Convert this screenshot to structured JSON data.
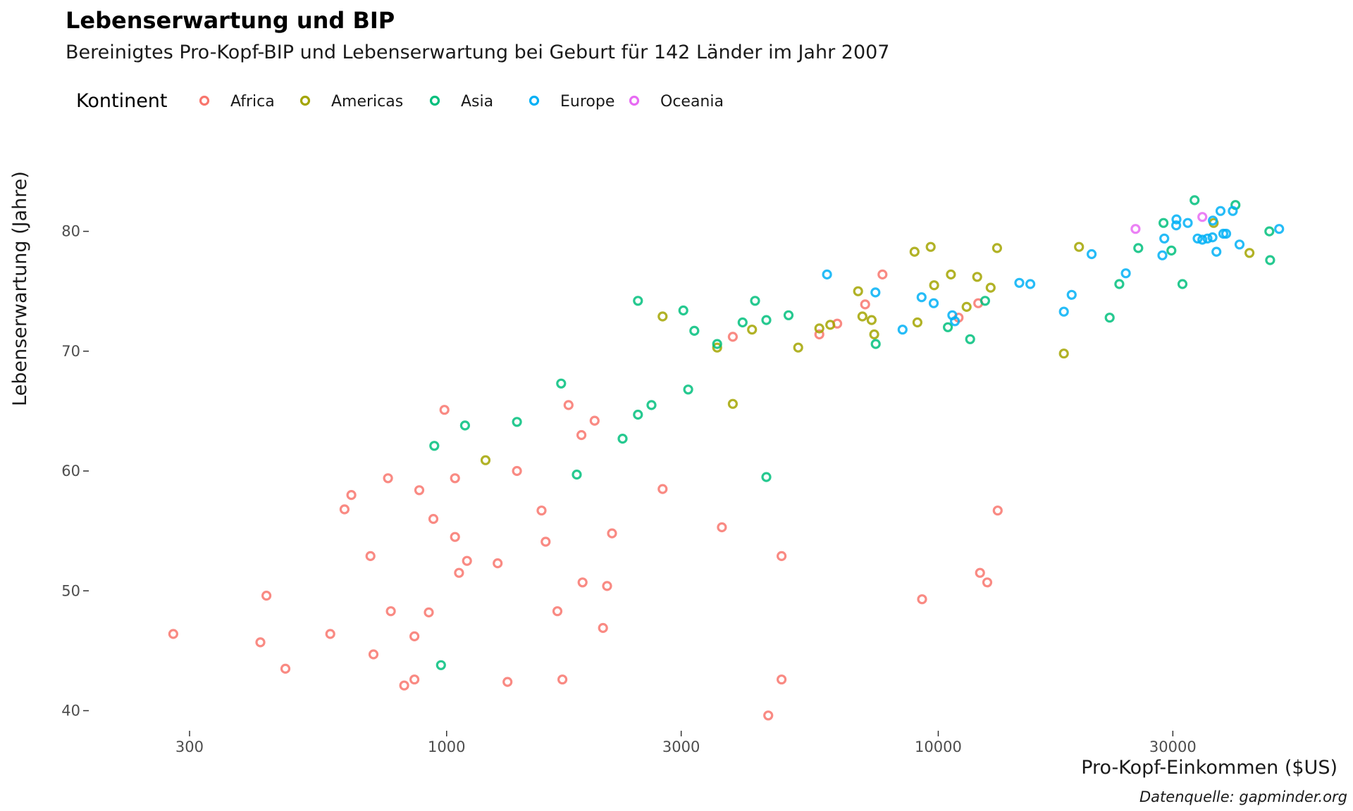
{
  "chart_data": {
    "type": "scatter",
    "title": "Lebenserwartung und BIP",
    "subtitle": "Bereinigtes Pro-Kopf-BIP und Lebenserwartung bei Geburt für 142 Länder im Jahr 2007",
    "xlabel": "Pro-Kopf-Einkommen ($US)",
    "ylabel": "Lebenserwartung (Jahre)",
    "caption": "Datenquelle: gapminder.org",
    "x_scale": "log",
    "xlim": [
      220,
      55000
    ],
    "ylim": [
      38.5,
      85.5
    ],
    "x_ticks": [
      300,
      1000,
      3000,
      10000,
      30000
    ],
    "x_tick_labels": [
      "300",
      "1000",
      "3000",
      "10000",
      "30000"
    ],
    "y_ticks": [
      40,
      50,
      60,
      70,
      80
    ],
    "y_tick_labels": [
      "40",
      "50",
      "60",
      "70",
      "80"
    ],
    "grid": false,
    "legend": {
      "title": "Kontinent",
      "position": "top-left",
      "entries": [
        {
          "name": "Africa",
          "color": "#F8766D"
        },
        {
          "name": "Americas",
          "color": "#A3A500"
        },
        {
          "name": "Asia",
          "color": "#00BF7D"
        },
        {
          "name": "Europe",
          "color": "#00B0F6"
        },
        {
          "name": "Oceania",
          "color": "#E76BF3"
        }
      ]
    },
    "series": [
      {
        "name": "Africa",
        "color": "#F8766D",
        "points": [
          [
            278,
            46.4
          ],
          [
            418,
            45.7
          ],
          [
            430,
            49.6
          ],
          [
            470,
            43.5
          ],
          [
            580,
            46.4
          ],
          [
            620,
            56.8
          ],
          [
            640,
            58.0
          ],
          [
            700,
            52.9
          ],
          [
            710,
            44.7
          ],
          [
            760,
            59.4
          ],
          [
            770,
            48.3
          ],
          [
            820,
            42.1
          ],
          [
            860,
            42.6
          ],
          [
            860,
            46.2
          ],
          [
            880,
            58.4
          ],
          [
            920,
            48.2
          ],
          [
            940,
            56.0
          ],
          [
            990,
            65.1
          ],
          [
            1040,
            54.5
          ],
          [
            1040,
            59.4
          ],
          [
            1060,
            51.5
          ],
          [
            1100,
            52.5
          ],
          [
            1270,
            52.3
          ],
          [
            1330,
            42.4
          ],
          [
            1390,
            60.0
          ],
          [
            1560,
            56.7
          ],
          [
            1590,
            54.1
          ],
          [
            1680,
            48.3
          ],
          [
            1720,
            42.6
          ],
          [
            1770,
            65.5
          ],
          [
            1880,
            63.0
          ],
          [
            1890,
            50.7
          ],
          [
            2000,
            64.2
          ],
          [
            2080,
            46.9
          ],
          [
            2120,
            50.4
          ],
          [
            2170,
            54.8
          ],
          [
            2750,
            58.5
          ],
          [
            3630,
            55.3
          ],
          [
            3820,
            71.2
          ],
          [
            4510,
            39.6
          ],
          [
            4800,
            42.6
          ],
          [
            4800,
            52.9
          ],
          [
            5730,
            71.4
          ],
          [
            6230,
            72.3
          ],
          [
            7100,
            73.9
          ],
          [
            7700,
            76.4
          ],
          [
            9270,
            49.3
          ],
          [
            12060,
            74.0
          ],
          [
            12160,
            51.5
          ],
          [
            12580,
            50.7
          ],
          [
            13210,
            56.7
          ],
          [
            11000,
            72.8
          ]
        ]
      },
      {
        "name": "Americas",
        "color": "#A3A500",
        "points": [
          [
            1200,
            60.9
          ],
          [
            2750,
            72.9
          ],
          [
            3550,
            70.3
          ],
          [
            3820,
            65.6
          ],
          [
            4180,
            71.8
          ],
          [
            5190,
            70.3
          ],
          [
            5730,
            71.9
          ],
          [
            6030,
            72.2
          ],
          [
            6870,
            75.0
          ],
          [
            7010,
            72.9
          ],
          [
            7320,
            72.6
          ],
          [
            7410,
            71.4
          ],
          [
            8950,
            78.3
          ],
          [
            9070,
            72.4
          ],
          [
            9650,
            78.7
          ],
          [
            9810,
            75.5
          ],
          [
            10610,
            76.4
          ],
          [
            11420,
            73.7
          ],
          [
            12000,
            76.2
          ],
          [
            12780,
            75.3
          ],
          [
            13170,
            78.6
          ],
          [
            18010,
            69.8
          ],
          [
            19330,
            78.7
          ],
          [
            36320,
            80.7
          ],
          [
            42950,
            78.2
          ]
        ]
      },
      {
        "name": "Asia",
        "color": "#00BF7D",
        "points": [
          [
            944,
            62.1
          ],
          [
            974,
            43.8
          ],
          [
            1090,
            63.8
          ],
          [
            1390,
            64.1
          ],
          [
            1710,
            67.3
          ],
          [
            1840,
            59.7
          ],
          [
            2280,
            62.7
          ],
          [
            2450,
            74.2
          ],
          [
            2450,
            64.7
          ],
          [
            2610,
            65.5
          ],
          [
            3030,
            73.4
          ],
          [
            3100,
            66.8
          ],
          [
            3190,
            71.7
          ],
          [
            3550,
            70.6
          ],
          [
            4000,
            72.4
          ],
          [
            4240,
            74.2
          ],
          [
            4470,
            59.5
          ],
          [
            4470,
            72.6
          ],
          [
            4960,
            73.0
          ],
          [
            7460,
            70.6
          ],
          [
            10460,
            72.0
          ],
          [
            11610,
            71.0
          ],
          [
            12450,
            74.2
          ],
          [
            22320,
            72.8
          ],
          [
            23350,
            75.6
          ],
          [
            25520,
            78.6
          ],
          [
            28720,
            80.7
          ],
          [
            29800,
            78.4
          ],
          [
            31380,
            75.6
          ],
          [
            33220,
            82.6
          ],
          [
            40220,
            82.2
          ],
          [
            47140,
            80.0
          ],
          [
            47310,
            77.6
          ]
        ]
      },
      {
        "name": "Europe",
        "color": "#00B0F6",
        "points": [
          [
            5940,
            76.4
          ],
          [
            7450,
            74.9
          ],
          [
            8460,
            71.8
          ],
          [
            9250,
            74.5
          ],
          [
            9790,
            74.0
          ],
          [
            10680,
            73.0
          ],
          [
            10810,
            72.5
          ],
          [
            14620,
            75.7
          ],
          [
            15390,
            75.6
          ],
          [
            18010,
            73.3
          ],
          [
            18680,
            74.7
          ],
          [
            20510,
            78.1
          ],
          [
            24070,
            76.5
          ],
          [
            28570,
            78.0
          ],
          [
            28820,
            79.4
          ],
          [
            30470,
            80.5
          ],
          [
            30520,
            81.0
          ],
          [
            32170,
            80.7
          ],
          [
            33690,
            79.4
          ],
          [
            34440,
            79.3
          ],
          [
            35280,
            79.4
          ],
          [
            36120,
            79.5
          ],
          [
            36180,
            80.9
          ],
          [
            36800,
            78.3
          ],
          [
            37510,
            81.7
          ],
          [
            38000,
            79.8
          ],
          [
            38510,
            79.8
          ],
          [
            39720,
            81.7
          ],
          [
            41000,
            78.9
          ],
          [
            49360,
            80.2
          ]
        ]
      },
      {
        "name": "Oceania",
        "color": "#E76BF3",
        "points": [
          [
            25190,
            80.2
          ],
          [
            34440,
            81.2
          ]
        ]
      }
    ]
  }
}
